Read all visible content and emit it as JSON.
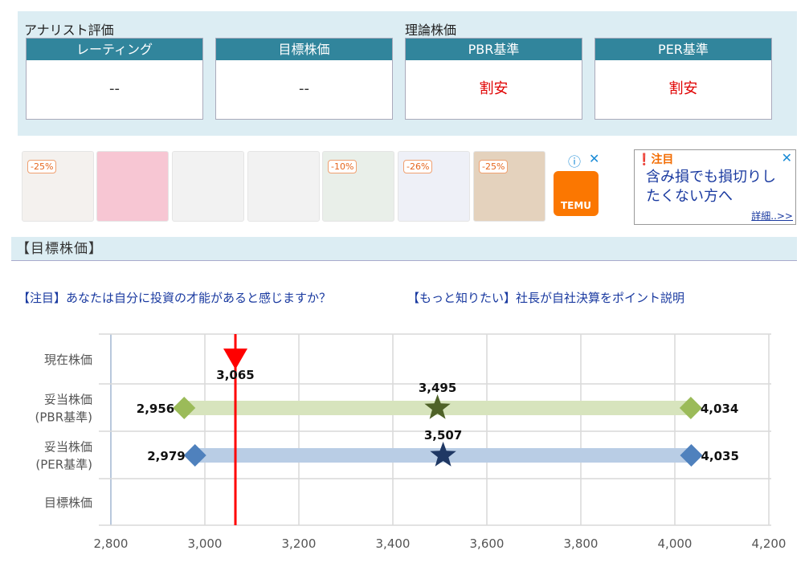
{
  "evaluation": {
    "analyst_label": "アナリスト評価",
    "theory_label": "理論株価",
    "cards": [
      {
        "header": "レーティング",
        "value": "--"
      },
      {
        "header": "目標株価",
        "value": "--"
      },
      {
        "header": "PBR基準",
        "value": "割安"
      },
      {
        "header": "PER基準",
        "value": "割安"
      }
    ]
  },
  "ads": {
    "badges": [
      "-25%",
      "",
      "",
      "",
      "-10%",
      "-26%",
      "-25%"
    ],
    "brand": "TEMU",
    "info_icon": "info-icon",
    "close_icon": "close-icon",
    "banner": {
      "title": "注目",
      "text": "含み損でも損切りしたくない方へ",
      "link": "詳細..>>"
    }
  },
  "section_title": "【目標株価】",
  "links": [
    "【注目】あなたは自分に投資の才能があると感じますか？",
    "【もっと知りたい】社長が自社決算をポイント説明"
  ],
  "colors": {
    "header": "#31859c",
    "panel": "#dcedf3",
    "pbr": "#9bbb59",
    "per": "#4f81bd",
    "current": "#ff0000",
    "cheap": "#e00000"
  },
  "chart_data": {
    "type": "range",
    "categories": [
      "現在株価",
      "妥当株価\n(PBR基準)",
      "妥当株価\n(PER基準)",
      "目標株価"
    ],
    "xlim": [
      2800,
      4200
    ],
    "xticks": [
      2800,
      3000,
      3200,
      3400,
      3600,
      3800,
      4000,
      4200
    ],
    "xtick_labels": [
      "2,800",
      "3,000",
      "3,200",
      "3,400",
      "3,600",
      "3,800",
      "4,000",
      "4,200"
    ],
    "grid": true,
    "current": {
      "value": 3065,
      "label": "3,065"
    },
    "series": [
      {
        "category": "妥当株価\n(PBR基準)",
        "low": 2956,
        "mid": 3495,
        "high": 4034,
        "labels": [
          "2,956",
          "3,495",
          "4,034"
        ],
        "color": "#9bbb59",
        "bar": "#d7e4bd",
        "star": "#4f6228"
      },
      {
        "category": "妥当株価\n(PER基準)",
        "low": 2979,
        "mid": 3507,
        "high": 4035,
        "labels": [
          "2,979",
          "3,507",
          "4,035"
        ],
        "color": "#4f81bd",
        "bar": "#b9cde5",
        "star": "#1f3864"
      }
    ]
  }
}
